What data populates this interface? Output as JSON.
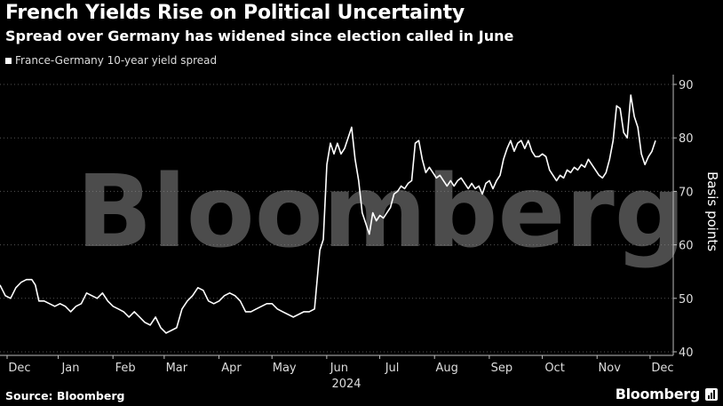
{
  "header": {
    "title": "French Yields Rise on Political Uncertainty",
    "subtitle": "Spread over Germany has widened since election called in June"
  },
  "footer": {
    "source": "Source: Bloomberg",
    "brand": "Bloomberg"
  },
  "watermark": "Bloomberg",
  "colors": {
    "background": "#000000",
    "line": "#ffffff",
    "grid": "#555555",
    "text": "#ffffff"
  },
  "chart_data": {
    "type": "line",
    "title": "French Yields Rise on Political Uncertainty",
    "subtitle": "Spread over Germany has widened since election called in June",
    "ylabel": "Basis points",
    "xlabel": "",
    "year_label": "2024",
    "ylim": [
      40,
      90
    ],
    "yticks": [
      40,
      50,
      60,
      70,
      80,
      90
    ],
    "xlim": [
      0,
      372
    ],
    "grid": true,
    "legend": "top-left",
    "x_axis_type": "date",
    "months": [
      {
        "label": "Dec",
        "x": 15
      },
      {
        "label": "Jan",
        "x": 46
      },
      {
        "label": "Feb",
        "x": 77
      },
      {
        "label": "Mar",
        "x": 106
      },
      {
        "label": "Apr",
        "x": 137
      },
      {
        "label": "May",
        "x": 167
      },
      {
        "label": "Jun",
        "x": 198
      },
      {
        "label": "Jul",
        "x": 228
      },
      {
        "label": "Aug",
        "x": 259
      },
      {
        "label": "Sep",
        "x": 290
      },
      {
        "label": "Oct",
        "x": 320
      },
      {
        "label": "Nov",
        "x": 351
      },
      {
        "label": "Dec",
        "x": 381
      }
    ],
    "series": [
      {
        "name": "France-Germany 10-year yield spread",
        "points": [
          [
            0,
            52.5
          ],
          [
            3,
            50.5
          ],
          [
            6,
            50
          ],
          [
            9,
            52
          ],
          [
            12,
            53
          ],
          [
            15,
            53.5
          ],
          [
            18,
            53.5
          ],
          [
            20,
            52.5
          ],
          [
            22,
            49.5
          ],
          [
            25,
            49.5
          ],
          [
            28,
            49
          ],
          [
            31,
            48.5
          ],
          [
            34,
            49
          ],
          [
            37,
            48.5
          ],
          [
            40,
            47.5
          ],
          [
            43,
            48.5
          ],
          [
            46,
            49
          ],
          [
            49,
            51
          ],
          [
            52,
            50.5
          ],
          [
            55,
            50
          ],
          [
            58,
            51
          ],
          [
            61,
            49.5
          ],
          [
            64,
            48.5
          ],
          [
            67,
            48
          ],
          [
            70,
            47.5
          ],
          [
            73,
            46.5
          ],
          [
            76,
            47.5
          ],
          [
            79,
            46.5
          ],
          [
            82,
            45.5
          ],
          [
            85,
            45
          ],
          [
            88,
            46.5
          ],
          [
            91,
            44.5
          ],
          [
            94,
            43.5
          ],
          [
            97,
            44
          ],
          [
            100,
            44.5
          ],
          [
            103,
            48
          ],
          [
            106,
            49.5
          ],
          [
            109,
            50.5
          ],
          [
            112,
            52
          ],
          [
            115,
            51.5
          ],
          [
            118,
            49.5
          ],
          [
            121,
            49
          ],
          [
            124,
            49.5
          ],
          [
            127,
            50.5
          ],
          [
            130,
            51
          ],
          [
            133,
            50.5
          ],
          [
            136,
            49.5
          ],
          [
            139,
            47.5
          ],
          [
            142,
            47.5
          ],
          [
            145,
            48
          ],
          [
            148,
            48.5
          ],
          [
            151,
            49
          ],
          [
            154,
            49
          ],
          [
            157,
            48
          ],
          [
            160,
            47.5
          ],
          [
            163,
            47
          ],
          [
            166,
            46.5
          ],
          [
            169,
            47
          ],
          [
            172,
            47.5
          ],
          [
            175,
            47.5
          ],
          [
            178,
            48
          ],
          [
            181,
            59
          ],
          [
            183,
            61
          ],
          [
            185,
            75
          ],
          [
            187,
            79
          ],
          [
            189,
            77
          ],
          [
            191,
            79
          ],
          [
            193,
            77
          ],
          [
            195,
            78
          ],
          [
            197,
            80
          ],
          [
            199,
            82
          ],
          [
            201,
            76
          ],
          [
            203,
            72
          ],
          [
            205,
            66
          ],
          [
            207,
            64
          ],
          [
            209,
            62
          ],
          [
            211,
            66
          ],
          [
            213,
            64.5
          ],
          [
            215,
            65.5
          ],
          [
            217,
            65
          ],
          [
            219,
            66
          ],
          [
            221,
            67
          ],
          [
            223,
            69.5
          ],
          [
            225,
            70
          ],
          [
            227,
            71
          ],
          [
            229,
            70.5
          ],
          [
            231,
            71.5
          ],
          [
            233,
            72
          ],
          [
            235,
            79
          ],
          [
            237,
            79.5
          ],
          [
            239,
            76
          ],
          [
            241,
            73.5
          ],
          [
            243,
            74.5
          ],
          [
            245,
            73.5
          ],
          [
            247,
            72.5
          ],
          [
            249,
            73
          ],
          [
            251,
            72
          ],
          [
            253,
            71
          ],
          [
            255,
            72
          ],
          [
            257,
            71
          ],
          [
            259,
            72
          ],
          [
            261,
            72.5
          ],
          [
            263,
            71.5
          ],
          [
            265,
            70.5
          ],
          [
            267,
            71.5
          ],
          [
            269,
            70.5
          ],
          [
            271,
            71
          ],
          [
            273,
            69.5
          ],
          [
            275,
            71.5
          ],
          [
            277,
            72
          ],
          [
            279,
            70.5
          ],
          [
            281,
            72
          ],
          [
            283,
            73
          ],
          [
            285,
            76
          ],
          [
            287,
            78
          ],
          [
            289,
            79.5
          ],
          [
            291,
            77.5
          ],
          [
            293,
            79
          ],
          [
            295,
            79.5
          ],
          [
            297,
            78
          ],
          [
            299,
            79.5
          ],
          [
            301,
            77.5
          ],
          [
            303,
            76.5
          ],
          [
            305,
            76.5
          ],
          [
            307,
            77
          ],
          [
            309,
            76.5
          ],
          [
            311,
            74
          ],
          [
            313,
            73
          ],
          [
            315,
            72
          ],
          [
            317,
            73
          ],
          [
            319,
            72.5
          ],
          [
            321,
            74
          ],
          [
            323,
            73.5
          ],
          [
            325,
            74.5
          ],
          [
            327,
            74
          ],
          [
            329,
            75
          ],
          [
            331,
            74.5
          ],
          [
            333,
            76
          ],
          [
            335,
            75
          ],
          [
            337,
            74
          ],
          [
            339,
            73
          ],
          [
            341,
            72.5
          ],
          [
            343,
            73.5
          ],
          [
            345,
            76
          ],
          [
            347,
            79.5
          ],
          [
            349,
            86
          ],
          [
            351,
            85.5
          ],
          [
            353,
            81
          ],
          [
            355,
            80
          ],
          [
            357,
            88
          ],
          [
            359,
            84
          ],
          [
            361,
            82
          ],
          [
            363,
            77
          ],
          [
            365,
            75
          ],
          [
            367,
            76.5
          ],
          [
            369,
            77.5
          ],
          [
            371,
            79.5
          ]
        ]
      }
    ]
  }
}
